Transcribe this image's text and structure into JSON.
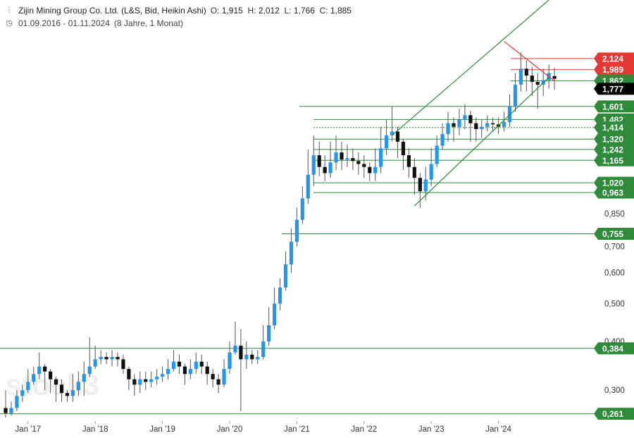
{
  "header": {
    "title": "Zijin Mining Group Co. Ltd. (L&S, Bid, Heikin Ashi)",
    "o_label": "O:",
    "o_val": "1,915",
    "h_label": "H:",
    "h_val": "2,012",
    "l_label": "L:",
    "l_val": "1,766",
    "c_label": "C:",
    "c_val": "1,885",
    "range": "01.09.2016 - 01.11.2024",
    "duration": "(8 Jahre, 1 Monat)",
    "icons": [
      "candles-icon",
      "clock-icon"
    ]
  },
  "watermark": "stock3",
  "colors": {
    "up": "#2196f3",
    "down": "#111111",
    "support": "#2e8b3a",
    "resistance": "#e53935",
    "last": "#000000"
  },
  "chart_data": {
    "type": "candlestick",
    "scale": "log",
    "ylim": [
      0.25,
      3.0
    ],
    "y_ticks": [
      "0,300",
      "0,400",
      "0,500",
      "0,600",
      "0,700",
      "0,850"
    ],
    "x_ticks": [
      "Jan '17",
      "Jan '18",
      "Jan '19",
      "Jan '20",
      "Jan '21",
      "Jan '22",
      "Jan '23",
      "Jan '24"
    ],
    "price_tags": [
      {
        "label": "2,124",
        "value": 2.124,
        "kind": "resistance"
      },
      {
        "label": "1,989",
        "value": 1.989,
        "kind": "resistance"
      },
      {
        "label": "1,862",
        "value": 1.862,
        "kind": "support"
      },
      {
        "label": "1,777",
        "value": 1.777,
        "kind": "last"
      },
      {
        "label": "1,601",
        "value": 1.601,
        "kind": "support"
      },
      {
        "label": "1,482",
        "value": 1.482,
        "kind": "support"
      },
      {
        "label": "1,414",
        "value": 1.414,
        "kind": "support"
      },
      {
        "label": "1,320",
        "value": 1.32,
        "kind": "support"
      },
      {
        "label": "1,242",
        "value": 1.242,
        "kind": "support"
      },
      {
        "label": "1,165",
        "value": 1.165,
        "kind": "support"
      },
      {
        "label": "1,020",
        "value": 1.02,
        "kind": "support"
      },
      {
        "label": "0,963",
        "value": 0.963,
        "kind": "support"
      },
      {
        "label": "0,755",
        "value": 0.755,
        "kind": "support"
      },
      {
        "label": "0,384",
        "value": 0.384,
        "kind": "support"
      },
      {
        "label": "0,261",
        "value": 0.261,
        "kind": "support"
      }
    ],
    "trend_lines": [
      {
        "from": [
          "2022-10",
          0.89
        ],
        "to": [
          "2024-10",
          1.9
        ],
        "kind": "support"
      },
      {
        "from": [
          "2022-06",
          1.35
        ],
        "to": [
          "2024-10",
          3.0
        ],
        "kind": "support"
      },
      {
        "from": [
          "2024-02",
          2.35
        ],
        "to": [
          "2024-11",
          1.86
        ],
        "kind": "resistance"
      }
    ],
    "candles": [
      [
        "2016-09",
        0.27,
        0.262,
        0.3,
        0.255
      ],
      [
        "2016-10",
        0.262,
        0.27,
        0.28,
        0.258
      ],
      [
        "2016-11",
        0.27,
        0.29,
        0.3,
        0.265
      ],
      [
        "2016-12",
        0.29,
        0.3,
        0.31,
        0.28
      ],
      [
        "2017-01",
        0.3,
        0.315,
        0.34,
        0.295
      ],
      [
        "2017-02",
        0.315,
        0.33,
        0.345,
        0.31
      ],
      [
        "2017-03",
        0.33,
        0.345,
        0.375,
        0.32
      ],
      [
        "2017-04",
        0.345,
        0.335,
        0.35,
        0.3
      ],
      [
        "2017-05",
        0.335,
        0.32,
        0.34,
        0.295
      ],
      [
        "2017-06",
        0.32,
        0.31,
        0.325,
        0.28
      ],
      [
        "2017-07",
        0.31,
        0.295,
        0.32,
        0.28
      ],
      [
        "2017-08",
        0.295,
        0.29,
        0.3,
        0.28
      ],
      [
        "2017-09",
        0.29,
        0.3,
        0.33,
        0.28
      ],
      [
        "2017-10",
        0.3,
        0.315,
        0.335,
        0.29
      ],
      [
        "2017-11",
        0.315,
        0.33,
        0.355,
        0.29
      ],
      [
        "2017-12",
        0.33,
        0.345,
        0.41,
        0.325
      ],
      [
        "2018-01",
        0.345,
        0.36,
        0.39,
        0.34
      ],
      [
        "2018-02",
        0.36,
        0.365,
        0.38,
        0.35
      ],
      [
        "2018-03",
        0.365,
        0.36,
        0.375,
        0.35
      ],
      [
        "2018-04",
        0.36,
        0.365,
        0.38,
        0.345
      ],
      [
        "2018-05",
        0.365,
        0.36,
        0.375,
        0.345
      ],
      [
        "2018-06",
        0.36,
        0.34,
        0.37,
        0.33
      ],
      [
        "2018-07",
        0.34,
        0.32,
        0.345,
        0.3
      ],
      [
        "2018-08",
        0.32,
        0.31,
        0.33,
        0.29
      ],
      [
        "2018-09",
        0.31,
        0.32,
        0.335,
        0.295
      ],
      [
        "2018-10",
        0.32,
        0.315,
        0.335,
        0.3
      ],
      [
        "2018-11",
        0.315,
        0.32,
        0.335,
        0.305
      ],
      [
        "2018-12",
        0.32,
        0.325,
        0.34,
        0.31
      ],
      [
        "2019-01",
        0.325,
        0.33,
        0.345,
        0.315
      ],
      [
        "2019-02",
        0.33,
        0.34,
        0.36,
        0.32
      ],
      [
        "2019-03",
        0.34,
        0.355,
        0.38,
        0.335
      ],
      [
        "2019-04",
        0.355,
        0.345,
        0.37,
        0.33
      ],
      [
        "2019-05",
        0.345,
        0.33,
        0.35,
        0.31
      ],
      [
        "2019-06",
        0.33,
        0.34,
        0.36,
        0.32
      ],
      [
        "2019-07",
        0.34,
        0.355,
        0.375,
        0.33
      ],
      [
        "2019-08",
        0.355,
        0.345,
        0.37,
        0.33
      ],
      [
        "2019-09",
        0.345,
        0.33,
        0.355,
        0.31
      ],
      [
        "2019-10",
        0.33,
        0.32,
        0.34,
        0.305
      ],
      [
        "2019-11",
        0.32,
        0.31,
        0.33,
        0.295
      ],
      [
        "2019-12",
        0.31,
        0.34,
        0.36,
        0.305
      ],
      [
        "2020-01",
        0.34,
        0.375,
        0.4,
        0.33
      ],
      [
        "2020-02",
        0.375,
        0.39,
        0.45,
        0.37
      ],
      [
        "2020-03",
        0.39,
        0.36,
        0.43,
        0.265
      ],
      [
        "2020-04",
        0.36,
        0.37,
        0.4,
        0.34
      ],
      [
        "2020-05",
        0.37,
        0.36,
        0.38,
        0.35
      ],
      [
        "2020-06",
        0.36,
        0.365,
        0.38,
        0.35
      ],
      [
        "2020-07",
        0.365,
        0.4,
        0.44,
        0.36
      ],
      [
        "2020-08",
        0.4,
        0.44,
        0.49,
        0.39
      ],
      [
        "2020-09",
        0.44,
        0.5,
        0.55,
        0.43
      ],
      [
        "2020-10",
        0.5,
        0.55,
        0.58,
        0.48
      ],
      [
        "2020-11",
        0.55,
        0.63,
        0.68,
        0.54
      ],
      [
        "2020-12",
        0.63,
        0.72,
        0.78,
        0.6
      ],
      [
        "2021-01",
        0.72,
        0.82,
        0.88,
        0.7
      ],
      [
        "2021-02",
        0.82,
        0.93,
        1.0,
        0.8
      ],
      [
        "2021-03",
        0.93,
        1.07,
        1.24,
        0.9
      ],
      [
        "2021-04",
        1.07,
        1.2,
        1.35,
        1.0
      ],
      [
        "2021-05",
        1.2,
        1.12,
        1.3,
        1.06
      ],
      [
        "2021-06",
        1.12,
        1.08,
        1.2,
        1.03
      ],
      [
        "2021-07",
        1.08,
        1.15,
        1.3,
        1.05
      ],
      [
        "2021-08",
        1.15,
        1.22,
        1.35,
        1.1
      ],
      [
        "2021-09",
        1.22,
        1.17,
        1.3,
        1.1
      ],
      [
        "2021-10",
        1.17,
        1.18,
        1.28,
        1.12
      ],
      [
        "2021-11",
        1.18,
        1.16,
        1.25,
        1.1
      ],
      [
        "2021-12",
        1.16,
        1.14,
        1.22,
        1.07
      ],
      [
        "2022-01",
        1.14,
        1.12,
        1.2,
        1.05
      ],
      [
        "2022-02",
        1.12,
        1.08,
        1.15,
        1.03
      ],
      [
        "2022-03",
        1.08,
        1.12,
        1.25,
        1.03
      ],
      [
        "2022-04",
        1.12,
        1.25,
        1.42,
        1.08
      ],
      [
        "2022-05",
        1.25,
        1.35,
        1.48,
        1.2
      ],
      [
        "2022-06",
        1.35,
        1.38,
        1.6,
        1.3
      ],
      [
        "2022-07",
        1.38,
        1.3,
        1.42,
        1.18
      ],
      [
        "2022-08",
        1.3,
        1.2,
        1.32,
        1.1
      ],
      [
        "2022-09",
        1.2,
        1.12,
        1.25,
        1.05
      ],
      [
        "2022-10",
        1.12,
        1.05,
        1.18,
        0.95
      ],
      [
        "2022-11",
        1.05,
        0.97,
        1.08,
        0.88
      ],
      [
        "2022-12",
        0.97,
        1.04,
        1.12,
        0.92
      ],
      [
        "2023-01",
        1.04,
        1.14,
        1.25,
        1.0
      ],
      [
        "2023-02",
        1.14,
        1.27,
        1.35,
        1.12
      ],
      [
        "2023-03",
        1.27,
        1.36,
        1.45,
        1.24
      ],
      [
        "2023-04",
        1.36,
        1.45,
        1.55,
        1.3
      ],
      [
        "2023-05",
        1.45,
        1.42,
        1.5,
        1.3
      ],
      [
        "2023-06",
        1.42,
        1.48,
        1.58,
        1.35
      ],
      [
        "2023-07",
        1.48,
        1.52,
        1.62,
        1.4
      ],
      [
        "2023-08",
        1.52,
        1.45,
        1.56,
        1.3
      ],
      [
        "2023-09",
        1.45,
        1.4,
        1.5,
        1.3
      ],
      [
        "2023-10",
        1.4,
        1.42,
        1.48,
        1.33
      ],
      [
        "2023-11",
        1.42,
        1.45,
        1.52,
        1.38
      ],
      [
        "2023-12",
        1.45,
        1.44,
        1.5,
        1.38
      ],
      [
        "2024-01",
        1.44,
        1.42,
        1.5,
        1.36
      ],
      [
        "2024-02",
        1.42,
        1.46,
        1.55,
        1.38
      ],
      [
        "2024-03",
        1.46,
        1.6,
        1.72,
        1.42
      ],
      [
        "2024-04",
        1.6,
        1.82,
        1.95,
        1.55
      ],
      [
        "2024-05",
        1.82,
        2.0,
        2.2,
        1.75
      ],
      [
        "2024-06",
        2.0,
        1.92,
        2.1,
        1.75
      ],
      [
        "2024-07",
        1.92,
        1.85,
        2.02,
        1.7
      ],
      [
        "2024-08",
        1.85,
        1.82,
        1.95,
        1.58
      ],
      [
        "2024-09",
        1.82,
        1.87,
        2.0,
        1.7
      ],
      [
        "2024-10",
        1.87,
        1.95,
        2.05,
        1.78
      ],
      [
        "2024-11",
        1.915,
        1.885,
        2.012,
        1.766
      ]
    ]
  }
}
